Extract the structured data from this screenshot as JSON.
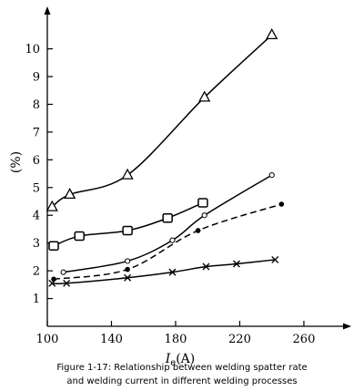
{
  "chart_data": {
    "type": "line",
    "xlabel_main": "I",
    "xlabel_sub": "e",
    "xlabel_unit": "(A)",
    "ylabel": "(%)",
    "xlim": [
      100,
      285
    ],
    "ylim": [
      0,
      11.3
    ],
    "x_ticks": [
      100,
      140,
      180,
      220,
      260
    ],
    "y_ticks": [
      1,
      2,
      3,
      4,
      5,
      6,
      7,
      8,
      9,
      10
    ],
    "grid": false,
    "series": [
      {
        "marker": "triangle",
        "dashed": false,
        "x": [
          103,
          114,
          150,
          198,
          240
        ],
        "y": [
          4.3,
          4.75,
          5.45,
          8.25,
          10.5
        ]
      },
      {
        "marker": "square",
        "dashed": false,
        "x": [
          104,
          120,
          150,
          175,
          197
        ],
        "y": [
          2.9,
          3.25,
          3.45,
          3.9,
          4.45
        ]
      },
      {
        "marker": "open-circle",
        "dashed": false,
        "x": [
          110,
          150,
          178,
          198,
          240
        ],
        "y": [
          1.95,
          2.35,
          3.1,
          4.0,
          5.45
        ]
      },
      {
        "marker": "filled-circle",
        "dashed": true,
        "x": [
          104,
          150,
          194,
          246
        ],
        "y": [
          1.7,
          2.05,
          3.45,
          4.4
        ]
      },
      {
        "marker": "x",
        "dashed": false,
        "x": [
          103,
          112,
          150,
          178,
          199,
          218,
          242
        ],
        "y": [
          1.55,
          1.55,
          1.75,
          1.95,
          2.15,
          2.25,
          2.4
        ]
      }
    ]
  },
  "caption": {
    "line1": "Figure 1-17: Relationship between welding spatter rate",
    "line2": "and welding current in different welding processes"
  }
}
